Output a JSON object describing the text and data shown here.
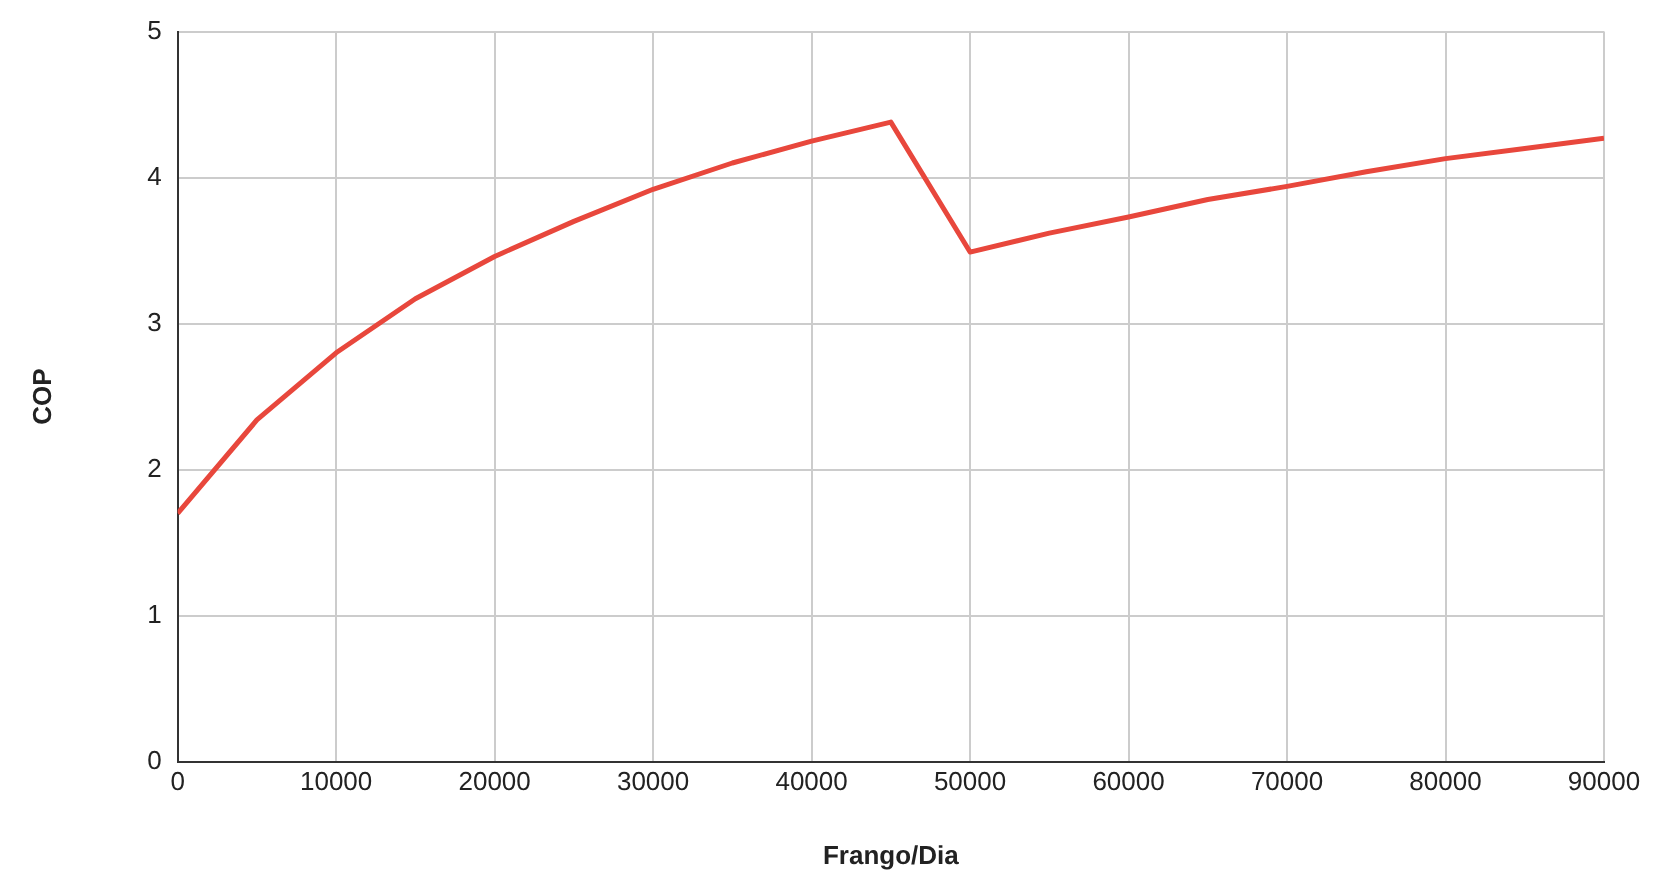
{
  "chart_data": {
    "type": "line",
    "xlabel": "Frango/Dia",
    "ylabel": "COP",
    "x": [
      0,
      5000,
      10000,
      15000,
      20000,
      25000,
      30000,
      35000,
      40000,
      45000,
      50000,
      55000,
      60000,
      65000,
      70000,
      75000,
      80000,
      85000,
      90000
    ],
    "series": [
      {
        "color": "#e8473c",
        "values": [
          1.7,
          2.34,
          2.8,
          3.17,
          3.46,
          3.7,
          3.92,
          4.1,
          4.25,
          4.38,
          3.49,
          3.62,
          3.73,
          3.85,
          3.94,
          4.04,
          4.13,
          4.2,
          4.27
        ]
      }
    ],
    "xlim": [
      0,
      90000
    ],
    "xticks": [
      0,
      10000,
      20000,
      30000,
      40000,
      50000,
      60000,
      70000,
      80000,
      90000
    ],
    "ylim": [
      0,
      5
    ],
    "yticks": [
      0,
      1,
      2,
      3,
      4,
      5
    ],
    "grid": true,
    "legend": false
  }
}
